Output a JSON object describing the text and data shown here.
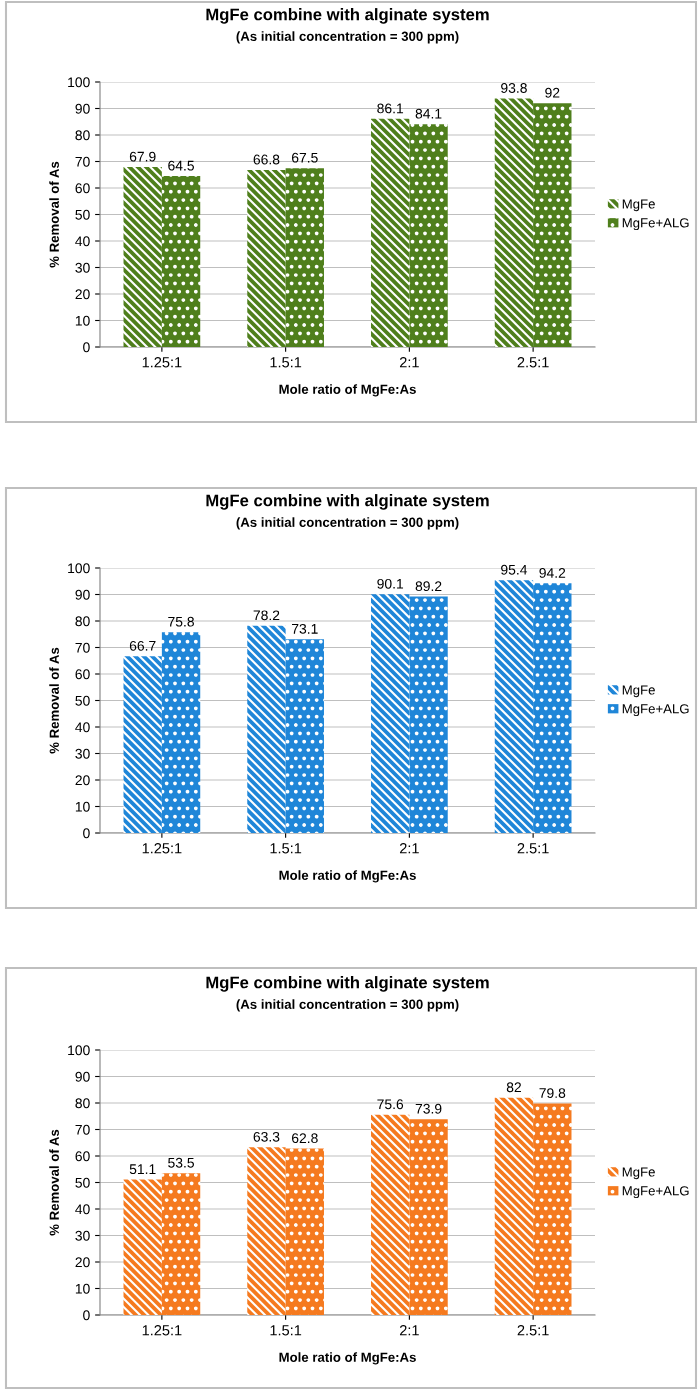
{
  "chart_data": [
    {
      "type": "bar",
      "title": "MgFe combine with alginate system",
      "subtitle": "(As initial concentration = 300 ppm)",
      "xlabel": "Mole ratio of MgFe:As",
      "ylabel": "% Removal of As",
      "categories": [
        "1.25:1",
        "1.5:1",
        "2:1",
        "2.5:1"
      ],
      "series": [
        {
          "name": "MgFe",
          "color": "#4f7f1c",
          "values": [
            67.9,
            66.8,
            86.1,
            93.8
          ]
        },
        {
          "name": "MgFe+ALG",
          "color": "#4f7f1c",
          "values": [
            64.5,
            67.5,
            84.1,
            92
          ]
        }
      ],
      "ylim": [
        0,
        100
      ],
      "yticks": [
        0,
        10,
        20,
        30,
        40,
        50,
        60,
        70,
        80,
        90,
        100
      ],
      "grid": "y",
      "legend": "right",
      "data_labels": true
    },
    {
      "type": "bar",
      "title": "MgFe combine with alginate system",
      "subtitle": "(As initial concentration = 300 ppm)",
      "xlabel": "Mole ratio of MgFe:As",
      "ylabel": "% Removal of As",
      "categories": [
        "1.25:1",
        "1.5:1",
        "2:1",
        "2.5:1"
      ],
      "series": [
        {
          "name": "MgFe",
          "color": "#1f86d8",
          "values": [
            66.7,
            78.2,
            90.1,
            95.4
          ]
        },
        {
          "name": "MgFe+ALG",
          "color": "#1f86d8",
          "values": [
            75.8,
            73.1,
            89.2,
            94.2
          ]
        }
      ],
      "ylim": [
        0,
        100
      ],
      "yticks": [
        0,
        10,
        20,
        30,
        40,
        50,
        60,
        70,
        80,
        90,
        100
      ],
      "grid": "y",
      "legend": "right",
      "data_labels": true
    },
    {
      "type": "bar",
      "title": "MgFe combine with alginate system",
      "subtitle": "(As initial concentration = 300 ppm)",
      "xlabel": "Mole ratio of MgFe:As",
      "ylabel": "% Removal of As",
      "categories": [
        "1.25:1",
        "1.5:1",
        "2:1",
        "2.5:1"
      ],
      "series": [
        {
          "name": "MgFe",
          "color": "#f57a1f",
          "values": [
            51.1,
            63.3,
            75.6,
            82
          ]
        },
        {
          "name": "MgFe+ALG",
          "color": "#f57a1f",
          "values": [
            53.5,
            62.8,
            73.9,
            79.8
          ]
        }
      ],
      "ylim": [
        0,
        100
      ],
      "yticks": [
        0,
        10,
        20,
        30,
        40,
        50,
        60,
        70,
        80,
        90,
        100
      ],
      "grid": "y",
      "legend": "right",
      "data_labels": true
    }
  ]
}
